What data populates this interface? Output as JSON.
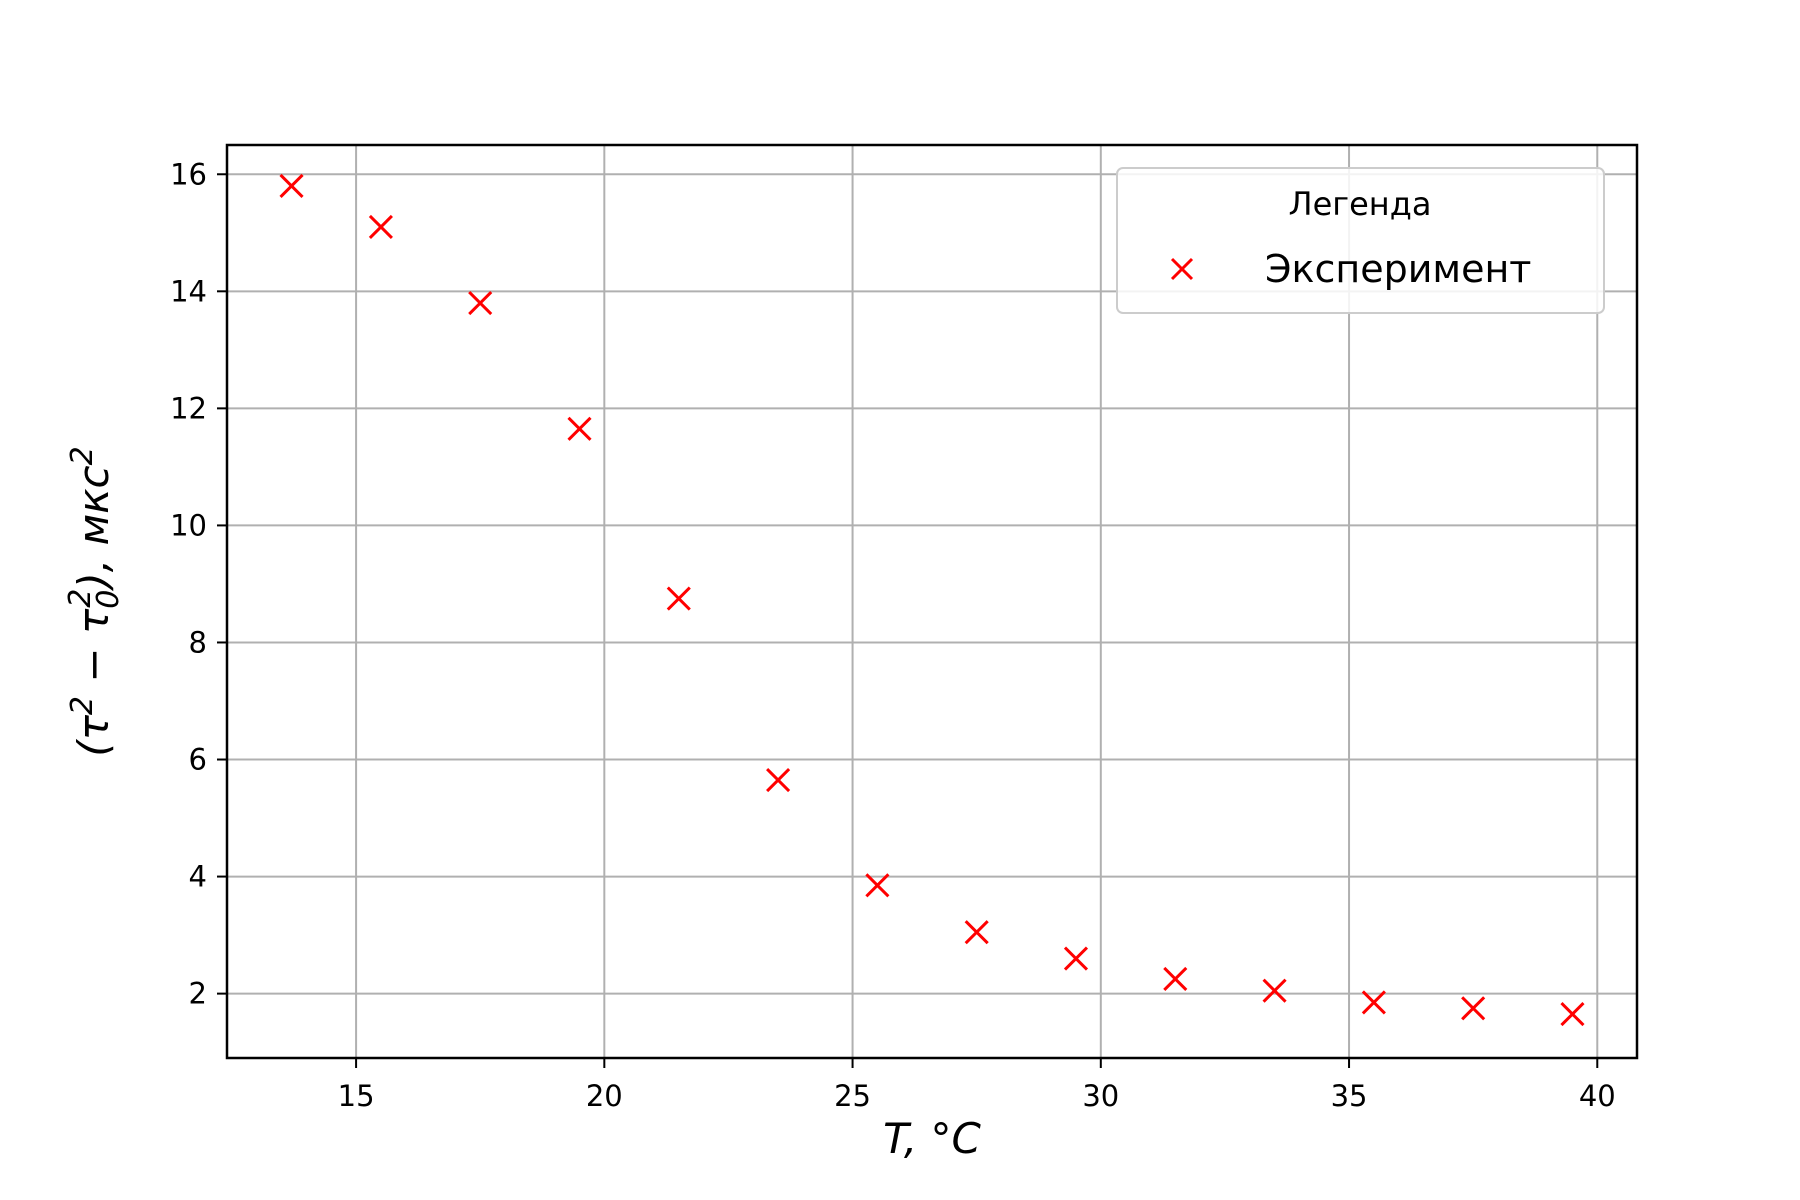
{
  "chart_data": {
    "type": "scatter",
    "title": "",
    "xlabel": "T, °C",
    "ylabel_parts": [
      "(τ",
      "2",
      " − τ",
      "0",
      "2",
      "), мкс",
      "2"
    ],
    "xlim": [
      12.4,
      40.8
    ],
    "ylim": [
      0.9,
      16.5
    ],
    "xticks": [
      15,
      20,
      25,
      30,
      35,
      40
    ],
    "yticks": [
      2,
      4,
      6,
      8,
      10,
      12,
      14,
      16
    ],
    "grid": true,
    "legend": {
      "title": "Легенда",
      "placement": "top-right"
    },
    "series": [
      {
        "name": "Эксперимент",
        "marker": "x",
        "color": "#ff0000",
        "x": [
          13.7,
          15.5,
          17.5,
          19.5,
          21.5,
          23.5,
          25.5,
          27.5,
          29.5,
          31.5,
          33.5,
          35.5,
          37.5,
          39.5
        ],
        "y": [
          15.8,
          15.1,
          13.8,
          11.65,
          8.75,
          5.65,
          3.85,
          3.05,
          2.6,
          2.25,
          2.05,
          1.85,
          1.75,
          1.65
        ]
      }
    ]
  }
}
